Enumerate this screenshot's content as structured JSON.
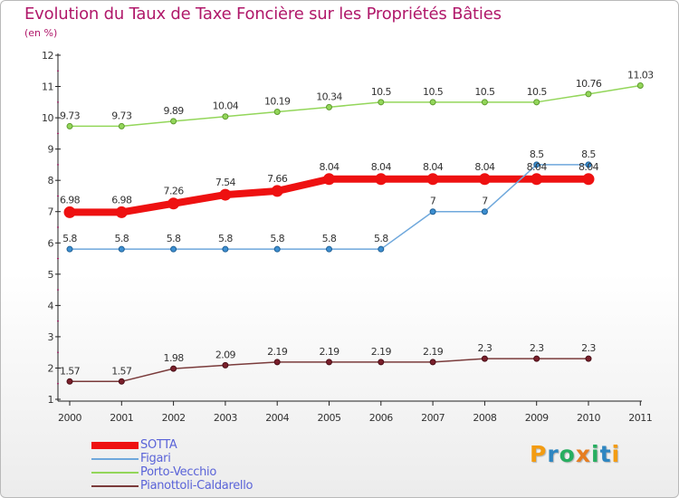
{
  "header": {
    "title": "Evolution du Taux de Taxe Foncière sur les Propriétés Bâties",
    "unit": "(en %)"
  },
  "logo": {
    "letters": [
      "P",
      "r",
      "o",
      "x",
      "i",
      "t",
      "i"
    ],
    "colors": [
      "#f39c12",
      "#2e86c1",
      "#27ae60",
      "#e67e22",
      "#27ae60",
      "#2e86c1",
      "#f39c12"
    ]
  },
  "chart_data": {
    "type": "line",
    "x": [
      "2000",
      "2001",
      "2002",
      "2003",
      "2004",
      "2005",
      "2006",
      "2007",
      "2008",
      "2009",
      "2010",
      "2011"
    ],
    "ylim": [
      1,
      12
    ],
    "yticks": [
      "1",
      "2",
      "3",
      "4",
      "5",
      "6",
      "7",
      "8",
      "9",
      "10",
      "11",
      "12"
    ],
    "grid": false,
    "legend_position": "bottom-left",
    "series": [
      {
        "name": "SOTTA",
        "color": "#ee1111",
        "values": [
          6.98,
          6.98,
          7.26,
          7.54,
          7.66,
          8.04,
          8.04,
          8.04,
          8.04,
          8.04,
          8.04,
          null
        ],
        "labels": [
          "6.98",
          "6.98",
          "7.26",
          "7.54",
          "7.66",
          "8.04",
          "8.04",
          "8.04",
          "8.04",
          "8.04",
          "8.04",
          null
        ]
      },
      {
        "name": "Figari",
        "color": "#6fa8dc",
        "values": [
          5.8,
          5.8,
          5.8,
          5.8,
          5.8,
          5.8,
          5.8,
          7,
          7,
          8.5,
          8.5,
          null
        ],
        "labels": [
          "5.8",
          "5.8",
          "5.8",
          "5.8",
          "5.8",
          "5.8",
          "5.8",
          "7",
          "7",
          "8.5",
          "8.5",
          null
        ]
      },
      {
        "name": "Porto-Vecchio",
        "color": "#93d65a",
        "values": [
          9.73,
          9.73,
          9.89,
          10.04,
          10.19,
          10.34,
          10.5,
          10.5,
          10.5,
          10.5,
          10.76,
          11.03
        ],
        "labels": [
          "9.73",
          "9.73",
          "9.89",
          "10.04",
          "10.19",
          "10.34",
          "10.5",
          "10.5",
          "10.5",
          "10.5",
          "10.76",
          "11.03"
        ]
      },
      {
        "name": "Pianottoli-Caldarello",
        "color": "#7a3b3b",
        "values": [
          1.57,
          1.57,
          1.98,
          2.09,
          2.19,
          2.19,
          2.19,
          2.19,
          2.3,
          2.3,
          2.3,
          null
        ],
        "labels": [
          "1.57",
          "1.57",
          "1.98",
          "2.09",
          "2.19",
          "2.19",
          "2.19",
          "2.19",
          "2.3",
          "2.3",
          "2.3",
          null
        ]
      }
    ]
  }
}
